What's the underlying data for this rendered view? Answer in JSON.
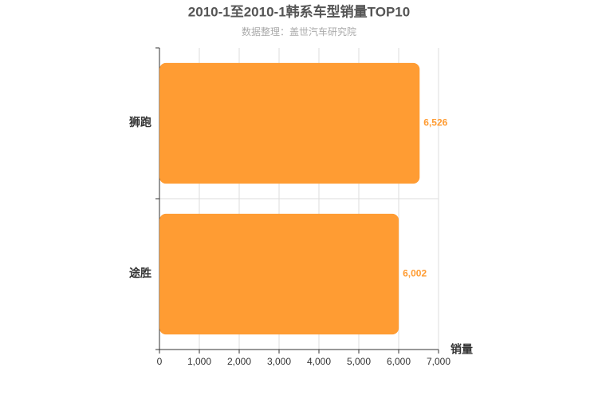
{
  "chart_data": {
    "type": "bar",
    "orientation": "horizontal",
    "title": "2010-1至2010-1韩系车型销量TOP10",
    "subtitle": "数据整理：盖世汽车研究院",
    "x_label": "销量",
    "categories": [
      "狮跑",
      "途胜"
    ],
    "values": [
      6526,
      6002
    ],
    "value_labels": [
      "6,526",
      "6,002"
    ],
    "color": "#ff9c33",
    "xlim": [
      0,
      7000
    ],
    "xticks": [
      0,
      {
        "value": 1000,
        "label": "1,000"
      },
      {
        "value": 2000,
        "label": "2,000"
      },
      {
        "value": 3000,
        "label": "3,000"
      },
      {
        "value": 4000,
        "label": "4,000"
      },
      {
        "value": 5000,
        "label": "5,000"
      },
      {
        "value": 6000,
        "label": "6,000"
      },
      {
        "value": 7000,
        "label": "7,000"
      }
    ],
    "grid": true
  }
}
